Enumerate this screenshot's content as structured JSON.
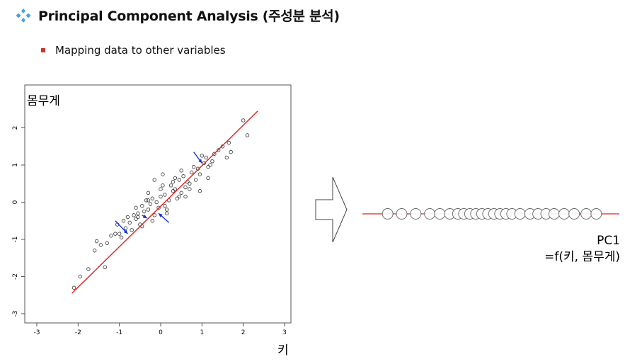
{
  "slide": {
    "title": "Principal Component Analysis (주성분 분석)",
    "bullet": "Mapping data to other variables",
    "bullet_color": "#c0392b",
    "accent_icon": "diamond-cluster-icon",
    "accent_color": "#4aa3df"
  },
  "chart_data": [
    {
      "type": "scatter",
      "ylabel": "몸무게",
      "xlabel": "키",
      "xlim": [
        -3,
        3
      ],
      "ylim": [
        -3,
        3
      ],
      "xticks": [
        "-3",
        "-2",
        "-1",
        "0",
        "1",
        "2",
        "3"
      ],
      "yticks": [
        "-3",
        "-2",
        "-1",
        "0",
        "1",
        "2"
      ],
      "grid": false,
      "points_x": [
        -2.1,
        -1.95,
        -1.75,
        -1.6,
        -1.55,
        -1.45,
        -1.3,
        -1.35,
        -1.2,
        -1.1,
        -1.05,
        -0.95,
        -0.9,
        -0.85,
        -0.8,
        -0.75,
        -0.7,
        -0.65,
        -0.6,
        -0.55,
        -0.5,
        -0.45,
        -0.45,
        -0.4,
        -0.35,
        -0.3,
        -0.3,
        -0.25,
        -0.2,
        -0.15,
        -0.15,
        -0.1,
        -0.05,
        0.0,
        0.0,
        0.05,
        0.1,
        0.1,
        0.15,
        0.2,
        0.25,
        0.3,
        0.3,
        0.35,
        0.4,
        0.45,
        0.5,
        0.5,
        0.55,
        0.6,
        0.65,
        0.7,
        0.75,
        0.8,
        0.85,
        0.9,
        0.95,
        1.0,
        1.05,
        1.1,
        1.15,
        1.2,
        1.3,
        1.4,
        1.5,
        1.6,
        1.65,
        1.7,
        2.0,
        2.1,
        -0.6,
        -0.3,
        0.15,
        0.45,
        0.7,
        0.95,
        1.15,
        -1.0,
        -0.55,
        0.05,
        0.6,
        1.25,
        -0.2,
        0.35
      ],
      "points_y": [
        -2.3,
        -2.0,
        -1.8,
        -1.3,
        -1.05,
        -1.15,
        -1.1,
        -1.75,
        -0.9,
        -0.85,
        -0.6,
        -0.95,
        -0.5,
        -0.7,
        -0.4,
        -0.55,
        -0.75,
        -0.35,
        -0.45,
        -0.3,
        -0.6,
        -0.1,
        -0.65,
        -0.25,
        0.05,
        -0.2,
        0.25,
        -0.05,
        0.1,
        -0.35,
        0.6,
        0.0,
        -0.15,
        0.15,
        0.35,
        0.75,
        -0.1,
        0.2,
        -0.3,
        0.05,
        0.45,
        0.3,
        0.55,
        0.35,
        0.1,
        0.6,
        0.85,
        0.25,
        0.7,
        0.4,
        0.55,
        0.35,
        0.8,
        0.95,
        0.6,
        0.9,
        0.75,
        1.25,
        1.05,
        1.2,
        0.95,
        1.0,
        1.3,
        1.4,
        1.5,
        1.2,
        1.6,
        1.35,
        2.2,
        1.8,
        -0.15,
        0.05,
        -0.2,
        0.15,
        0.5,
        0.3,
        0.65,
        -0.85,
        -0.4,
        0.45,
        0.15,
        1.1,
        -0.5,
        0.65
      ],
      "fit_line": {
        "x": [
          -2.15,
          2.35
        ],
        "y": [
          -2.45,
          2.45
        ],
        "color": "#e02020"
      },
      "projections": [
        {
          "from": [
            -1.1,
            -0.5
          ],
          "to": [
            -0.8,
            -0.85
          ]
        },
        {
          "from": [
            -0.45,
            -0.35
          ],
          "to": [
            -0.33,
            -0.43
          ]
        },
        {
          "from": [
            0.2,
            -0.55
          ],
          "to": [
            -0.05,
            -0.3
          ]
        },
        {
          "from": [
            0.8,
            1.35
          ],
          "to": [
            1.0,
            1.05
          ]
        }
      ],
      "projection_color": "#1030e0"
    },
    {
      "type": "scatter",
      "series_label": "PC1",
      "annotation": "=f(키, 몸무게)",
      "xlim": [
        -3,
        3
      ],
      "points_x": [
        -2.6,
        -2.25,
        -1.9,
        -1.55,
        -1.3,
        -1.05,
        -0.85,
        -0.7,
        -0.55,
        -0.4,
        -0.25,
        -0.1,
        0.05,
        0.2,
        0.35,
        0.5,
        0.7,
        0.95,
        1.15,
        1.35,
        1.55,
        1.8,
        2.05,
        2.35,
        2.6
      ],
      "line_color": "#e02020"
    }
  ],
  "arrow": {
    "icon": "right-arrow-outline-icon"
  }
}
